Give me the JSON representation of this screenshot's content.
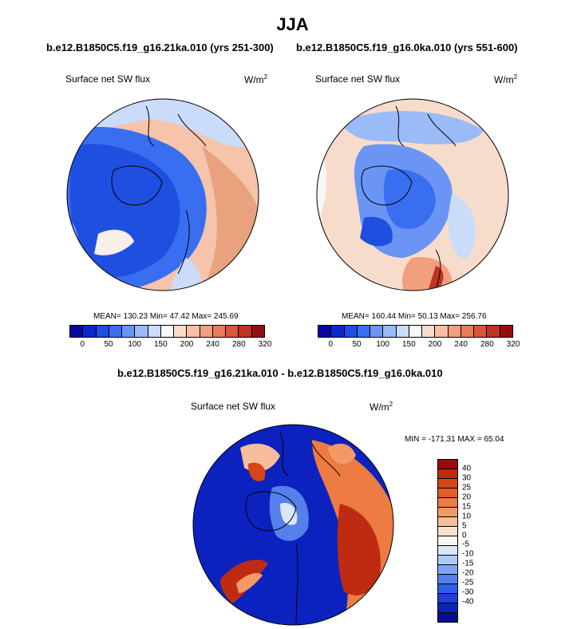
{
  "title": "JJA",
  "left_panel": {
    "case": "b.e12.B1850C5.f19_g16.21ka.010 (yrs 251-300)",
    "variable": "Surface net SW flux",
    "units_base": "W/m",
    "units_exp": "2",
    "stats": "MEAN= 130.23  Min=  47.42  Max= 245.69"
  },
  "right_panel": {
    "case": "b.e12.B1850C5.f19_g16.0ka.010 (yrs 551-600)",
    "variable": "Surface net SW flux",
    "units_base": "W/m",
    "units_exp": "2",
    "stats": "MEAN= 160.44  Min=  50.13  Max= 256.76"
  },
  "diff_panel": {
    "case": "b.e12.B1850C5.f19_g16.21ka.010 - b.e12.B1850C5.f19_g16.0ka.010",
    "variable": "Surface net SW flux",
    "units_base": "W/m",
    "units_exp": "2",
    "stats": "MIN = -171.31 MAX =  65.04"
  },
  "colorbar_abs": {
    "colors": [
      "#08089a",
      "#0c28c8",
      "#1f4fe0",
      "#3a6ef0",
      "#6a95f5",
      "#9bbaf8",
      "#cadcf9",
      "#f7f7f7",
      "#fbdccb",
      "#f8bea3",
      "#f29f7f",
      "#e87c5b",
      "#d8573b",
      "#be3322",
      "#960d0d"
    ],
    "tick_labels": [
      "0",
      "50",
      "100",
      "150",
      "200",
      "240",
      "280",
      "320"
    ]
  },
  "colorbar_diff": {
    "colors": [
      "#960d0d",
      "#be2b12",
      "#d64418",
      "#e55d26",
      "#ee7b41",
      "#f39966",
      "#f8bd9a",
      "#fbe1cf",
      "#f7f7f7",
      "#d9e6fb",
      "#aec9f7",
      "#7fa5f2",
      "#5580ec",
      "#2f5fe6",
      "#1b3fd8",
      "#0c22bf",
      "#060f92"
    ],
    "tick_labels": [
      "40",
      "30",
      "25",
      "20",
      "15",
      "10",
      "5",
      "0",
      "-5",
      "-10",
      "-15",
      "-20",
      "-25",
      "-30",
      "-40"
    ]
  }
}
